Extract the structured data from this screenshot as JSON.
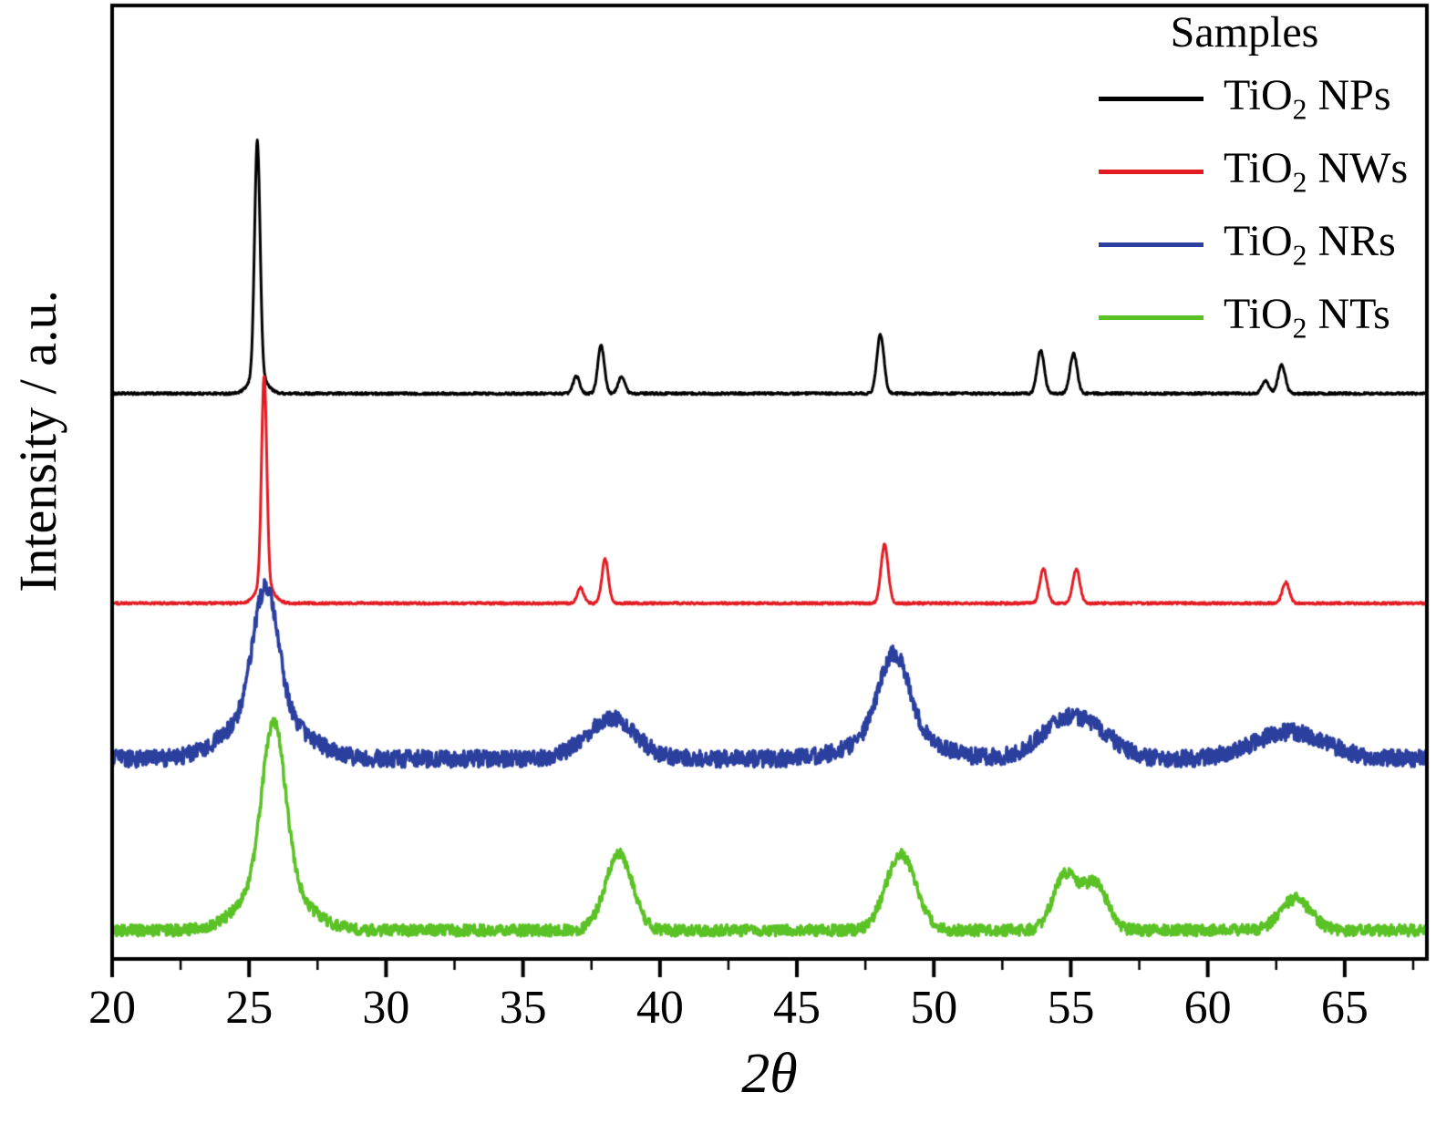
{
  "figure": {
    "background": "#ffffff",
    "axis_color": "#000000"
  },
  "chart_data": {
    "type": "line",
    "title": "",
    "xlabel": "2θ",
    "ylabel": "Intensity / a.u.",
    "xlim": [
      20,
      68
    ],
    "x_major_ticks": [
      20,
      25,
      30,
      35,
      40,
      45,
      50,
      55,
      60,
      65
    ],
    "x_minor_step": 2.5,
    "y_ticks": [],
    "grid": false,
    "legend": {
      "title": "Samples",
      "position": "top-right"
    },
    "series": [
      {
        "name": "TiO2 NPs",
        "label_formula": "TiO",
        "label_sub": "2",
        "label_suffix": " NPs",
        "color": "#000000",
        "line_width": 3,
        "baseline": 0.593,
        "noise": 0.0012,
        "peaks": [
          {
            "x": 25.3,
            "h": 0.245,
            "w": 0.1
          },
          {
            "x": 25.32,
            "h": 0.02,
            "w": 0.3
          },
          {
            "x": 36.95,
            "h": 0.018,
            "w": 0.12
          },
          {
            "x": 37.85,
            "h": 0.05,
            "w": 0.12
          },
          {
            "x": 38.6,
            "h": 0.018,
            "w": 0.12
          },
          {
            "x": 48.05,
            "h": 0.062,
            "w": 0.13
          },
          {
            "x": 53.9,
            "h": 0.045,
            "w": 0.13
          },
          {
            "x": 55.1,
            "h": 0.042,
            "w": 0.13
          },
          {
            "x": 62.1,
            "h": 0.013,
            "w": 0.13
          },
          {
            "x": 62.7,
            "h": 0.03,
            "w": 0.13
          }
        ]
      },
      {
        "name": "TiO2 NWs",
        "label_formula": "TiO",
        "label_sub": "2",
        "label_suffix": " NWs",
        "color": "#e31b23",
        "line_width": 3,
        "baseline": 0.373,
        "noise": 0.0012,
        "peaks": [
          {
            "x": 25.55,
            "h": 0.22,
            "w": 0.095
          },
          {
            "x": 25.57,
            "h": 0.02,
            "w": 0.3
          },
          {
            "x": 37.1,
            "h": 0.016,
            "w": 0.12
          },
          {
            "x": 38.0,
            "h": 0.046,
            "w": 0.12
          },
          {
            "x": 48.2,
            "h": 0.062,
            "w": 0.13
          },
          {
            "x": 54.0,
            "h": 0.036,
            "w": 0.13
          },
          {
            "x": 55.2,
            "h": 0.036,
            "w": 0.13
          },
          {
            "x": 62.85,
            "h": 0.022,
            "w": 0.13
          }
        ]
      },
      {
        "name": "TiO2 NRs",
        "label_formula": "TiO",
        "label_sub": "2",
        "label_suffix": " NRs",
        "color": "#2b3f9e",
        "line_width": 3.5,
        "baseline": 0.21,
        "noise": 0.009,
        "peaks": [
          {
            "x": 25.6,
            "h": 0.13,
            "w": 0.45
          },
          {
            "x": 25.6,
            "h": 0.05,
            "w": 1.3
          },
          {
            "x": 38.2,
            "h": 0.042,
            "w": 0.9
          },
          {
            "x": 48.55,
            "h": 0.085,
            "w": 0.55
          },
          {
            "x": 48.55,
            "h": 0.025,
            "w": 1.4
          },
          {
            "x": 54.6,
            "h": 0.03,
            "w": 0.9
          },
          {
            "x": 55.8,
            "h": 0.025,
            "w": 0.9
          },
          {
            "x": 63.0,
            "h": 0.028,
            "w": 1.3
          }
        ]
      },
      {
        "name": "TiO2 NTs",
        "label_formula": "TiO",
        "label_sub": "2",
        "label_suffix": " NTs",
        "color": "#5bc226",
        "line_width": 3.5,
        "baseline": 0.03,
        "noise": 0.006,
        "peaks": [
          {
            "x": 25.9,
            "h": 0.17,
            "w": 0.42
          },
          {
            "x": 25.9,
            "h": 0.05,
            "w": 1.1
          },
          {
            "x": 38.5,
            "h": 0.08,
            "w": 0.5
          },
          {
            "x": 48.8,
            "h": 0.08,
            "w": 0.55
          },
          {
            "x": 54.8,
            "h": 0.057,
            "w": 0.45
          },
          {
            "x": 55.9,
            "h": 0.048,
            "w": 0.45
          },
          {
            "x": 63.2,
            "h": 0.033,
            "w": 0.55
          }
        ]
      }
    ]
  }
}
